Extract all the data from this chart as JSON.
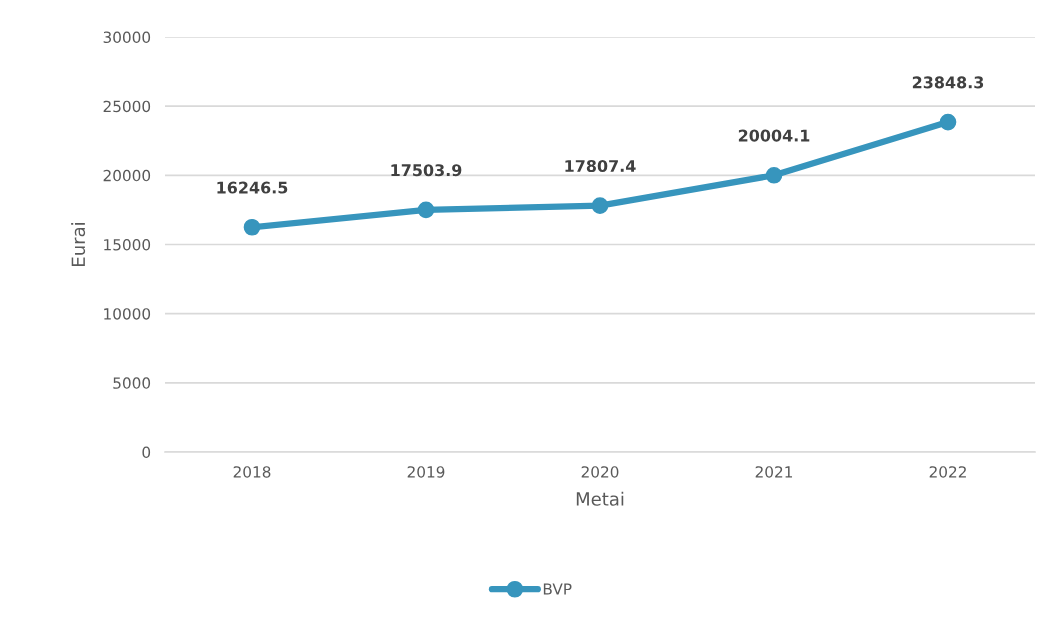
{
  "chart_data": {
    "type": "line",
    "xlabel": "Metai",
    "ylabel": "Eurai",
    "categories": [
      "2018",
      "2019",
      "2020",
      "2021",
      "2022"
    ],
    "series": [
      {
        "name": "BVP",
        "color": "#3795bd",
        "values": [
          16246.5,
          17503.9,
          17807.4,
          20004.1,
          23848.3
        ]
      }
    ],
    "ylim": [
      0,
      30000
    ],
    "yticks": [
      0,
      5000,
      10000,
      15000,
      20000,
      25000,
      30000
    ],
    "grid": "y",
    "legend": "bottom",
    "marker": "circle",
    "line_style": "solid",
    "data_labels": true
  }
}
